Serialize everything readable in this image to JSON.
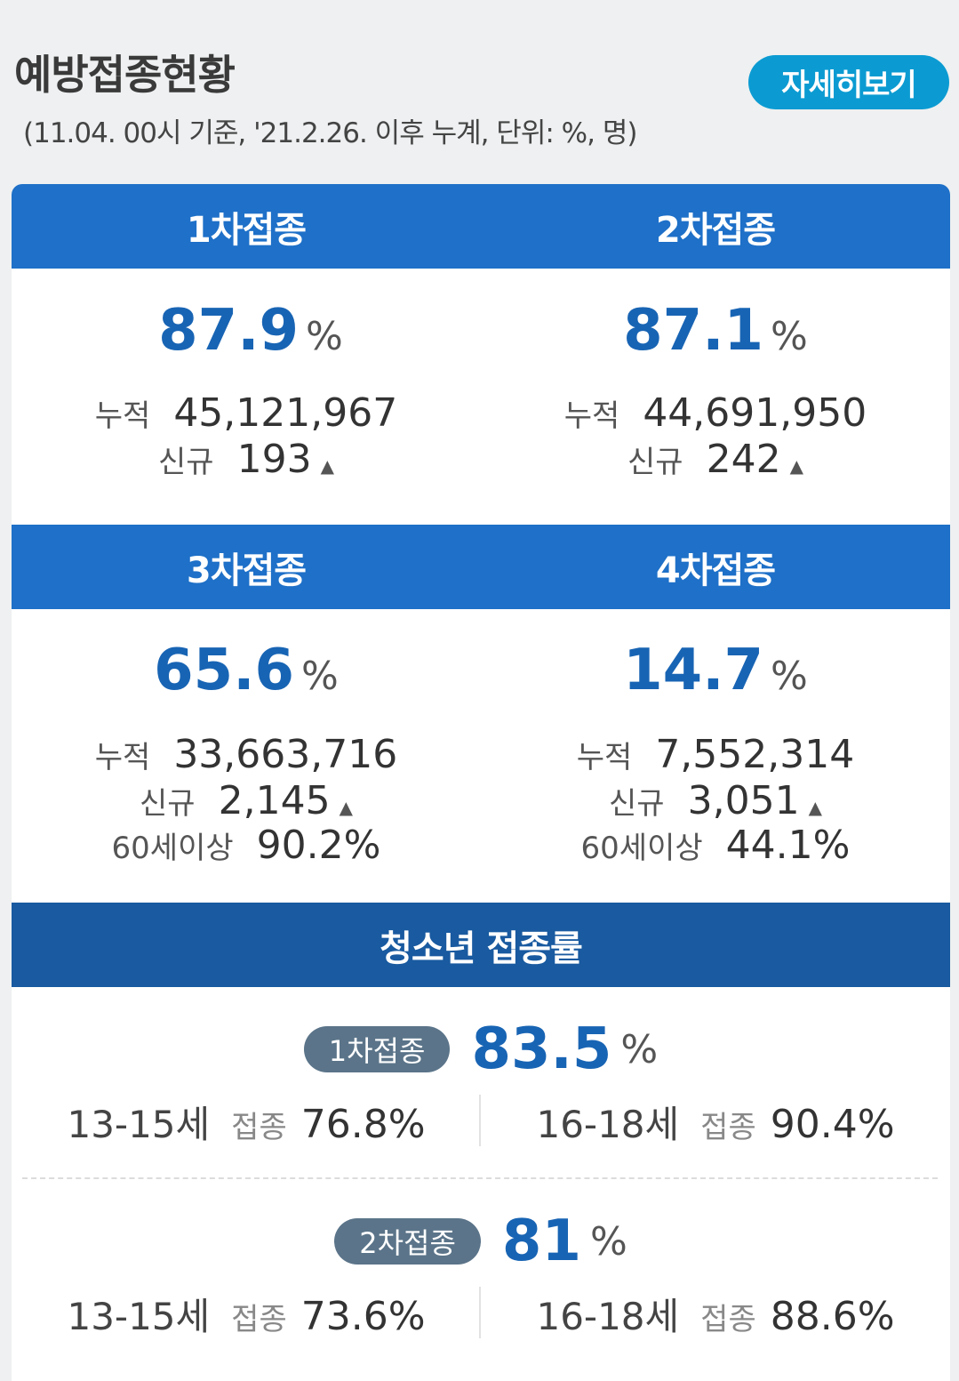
{
  "header": {
    "title": "예방접종현황",
    "subtitle": "(11.04. 00시 기준, '21.2.26. 이후 누계, 단위: %, 명)",
    "detail_button": "자세히보기"
  },
  "doses": [
    {
      "label": "1차접종",
      "pct": "87.9",
      "pct_unit": "%",
      "cum_label": "누적",
      "cum": "45,121,967",
      "new_label": "신규",
      "new": "193"
    },
    {
      "label": "2차접종",
      "pct": "87.1",
      "pct_unit": "%",
      "cum_label": "누적",
      "cum": "44,691,950",
      "new_label": "신규",
      "new": "242"
    },
    {
      "label": "3차접종",
      "pct": "65.6",
      "pct_unit": "%",
      "cum_label": "누적",
      "cum": "33,663,716",
      "new_label": "신규",
      "new": "2,145",
      "age_label": "60세이상",
      "age_val": "90.2%"
    },
    {
      "label": "4차접종",
      "pct": "14.7",
      "pct_unit": "%",
      "cum_label": "누적",
      "cum": "7,552,314",
      "new_label": "신규",
      "new": "3,051",
      "age_label": "60세이상",
      "age_val": "44.1%"
    }
  ],
  "youth": {
    "title": "청소년 접종률",
    "rows": [
      {
        "pill": "1차접종",
        "pct": "83.5",
        "pct_unit": "%",
        "ages": [
          {
            "name": "13-15세",
            "label": "접종",
            "val": "76.8%"
          },
          {
            "name": "16-18세",
            "label": "접종",
            "val": "90.4%"
          }
        ]
      },
      {
        "pill": "2차접종",
        "pct": "81",
        "pct_unit": "%",
        "ages": [
          {
            "name": "13-15세",
            "label": "접종",
            "val": "73.6%"
          },
          {
            "name": "16-18세",
            "label": "접종",
            "val": "88.6%"
          }
        ]
      }
    ]
  },
  "up_icon": "triangle-up-icon"
}
